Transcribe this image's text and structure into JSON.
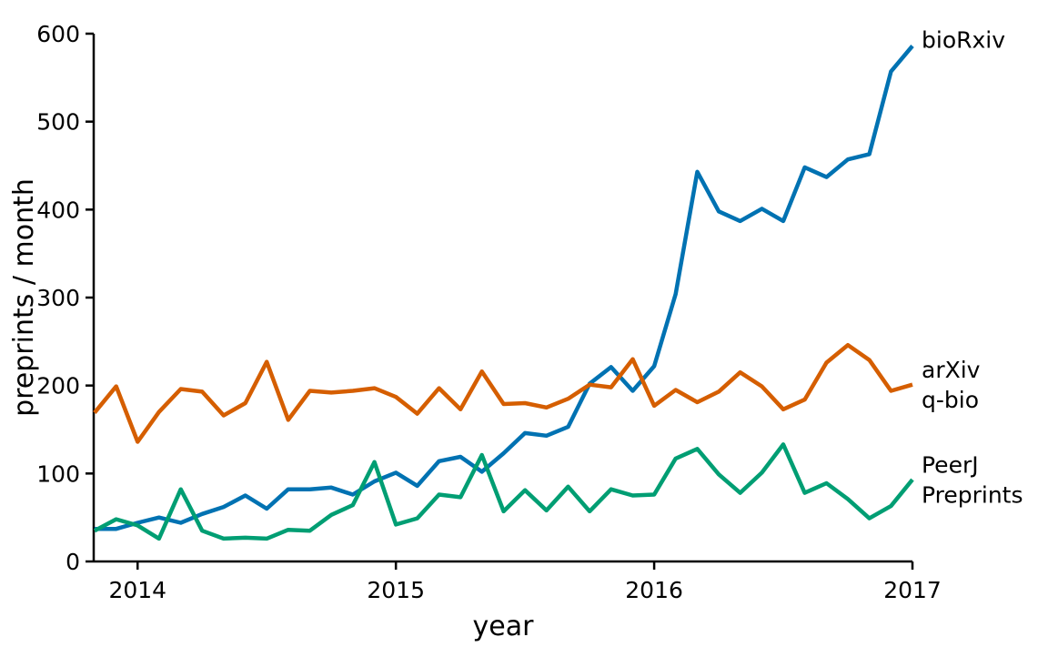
{
  "chart_data": {
    "type": "line",
    "xlabel": "year",
    "ylabel": "preprints / month",
    "xlim": [
      2013.83,
      2017.0
    ],
    "ylim": [
      0,
      600
    ],
    "x_ticks": [
      2014,
      2015,
      2016,
      2017
    ],
    "y_ticks": [
      0,
      100,
      200,
      300,
      400,
      500,
      600
    ],
    "grid": false,
    "legend": "direct labels at right end of lines",
    "series": [
      {
        "name": "bioRxiv",
        "label_lines": [
          "bioRxiv"
        ],
        "color": "#0072B2",
        "x": [
          2013.833,
          2013.917,
          2014.0,
          2014.083,
          2014.167,
          2014.25,
          2014.333,
          2014.417,
          2014.5,
          2014.583,
          2014.667,
          2014.75,
          2014.833,
          2014.917,
          2015.0,
          2015.083,
          2015.167,
          2015.25,
          2015.333,
          2015.417,
          2015.5,
          2015.583,
          2015.667,
          2015.75,
          2015.833,
          2015.917,
          2016.0,
          2016.083,
          2016.167,
          2016.25,
          2016.333,
          2016.417,
          2016.5,
          2016.583,
          2016.667,
          2016.75,
          2016.833,
          2016.917,
          2017.0
        ],
        "values": [
          37,
          37,
          44,
          50,
          44,
          54,
          62,
          75,
          60,
          82,
          82,
          84,
          76,
          91,
          101,
          86,
          114,
          119,
          102,
          123,
          146,
          143,
          153,
          202,
          221,
          194,
          222,
          304,
          443,
          398,
          387,
          401,
          387,
          448,
          437,
          457,
          463,
          557,
          586
        ]
      },
      {
        "name": "arXiv q-bio",
        "label_lines": [
          "arXiv",
          "q-bio"
        ],
        "color": "#D55E00",
        "x": [
          2013.833,
          2013.917,
          2014.0,
          2014.083,
          2014.167,
          2014.25,
          2014.333,
          2014.417,
          2014.5,
          2014.583,
          2014.667,
          2014.75,
          2014.833,
          2014.917,
          2015.0,
          2015.083,
          2015.167,
          2015.25,
          2015.333,
          2015.417,
          2015.5,
          2015.583,
          2015.667,
          2015.75,
          2015.833,
          2015.917,
          2016.0,
          2016.083,
          2016.167,
          2016.25,
          2016.333,
          2016.417,
          2016.5,
          2016.583,
          2016.667,
          2016.75,
          2016.833,
          2016.917,
          2017.0
        ],
        "values": [
          169,
          199,
          136,
          170,
          196,
          193,
          166,
          180,
          227,
          161,
          194,
          192,
          194,
          197,
          187,
          168,
          197,
          173,
          216,
          179,
          180,
          175,
          185,
          201,
          198,
          230,
          177,
          195,
          181,
          193,
          215,
          199,
          173,
          184,
          226,
          246,
          229,
          194,
          201
        ]
      },
      {
        "name": "PeerJ Preprints",
        "label_lines": [
          "PeerJ",
          "Preprints"
        ],
        "color": "#009E73",
        "x": [
          2013.833,
          2013.917,
          2014.0,
          2014.083,
          2014.167,
          2014.25,
          2014.333,
          2014.417,
          2014.5,
          2014.583,
          2014.667,
          2014.75,
          2014.833,
          2014.917,
          2015.0,
          2015.083,
          2015.167,
          2015.25,
          2015.333,
          2015.417,
          2015.5,
          2015.583,
          2015.667,
          2015.75,
          2015.833,
          2015.917,
          2016.0,
          2016.083,
          2016.167,
          2016.25,
          2016.333,
          2016.417,
          2016.5,
          2016.583,
          2016.667,
          2016.75,
          2016.833,
          2016.917,
          2017.0
        ],
        "values": [
          35,
          48,
          41,
          26,
          82,
          35,
          26,
          27,
          26,
          36,
          35,
          53,
          64,
          113,
          42,
          49,
          76,
          73,
          121,
          57,
          81,
          58,
          85,
          57,
          82,
          75,
          76,
          117,
          128,
          99,
          78,
          101,
          133,
          78,
          89,
          71,
          49,
          63,
          93
        ]
      }
    ]
  }
}
